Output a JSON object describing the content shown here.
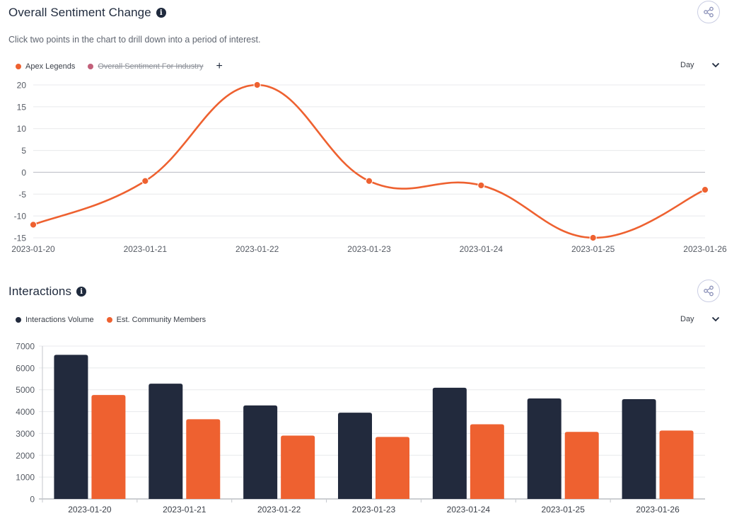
{
  "sentiment": {
    "title": "Overall Sentiment Change",
    "info_icon": "info-icon",
    "share_icon": "share-icon",
    "subtitle": "Click two points in the chart to drill down into a period of interest.",
    "legend": [
      {
        "label": "Apex Legends",
        "color": "#ee6130",
        "hidden": false
      },
      {
        "label": "Overall Sentiment For Industry",
        "color": "#c2607a",
        "hidden": true
      }
    ],
    "add_label": "+",
    "range_label": "Day"
  },
  "interactions": {
    "title": "Interactions",
    "info_icon": "info-icon",
    "share_icon": "share-icon",
    "legend": [
      {
        "label": "Interactions Volume",
        "color": "#222a3d"
      },
      {
        "label": "Est. Community Members",
        "color": "#ee6130"
      }
    ],
    "range_label": "Day"
  },
  "chart_data": [
    {
      "type": "line",
      "title": "Overall Sentiment Change",
      "x": [
        "2023-01-20",
        "2023-01-21",
        "2023-01-22",
        "2023-01-23",
        "2023-01-24",
        "2023-01-25",
        "2023-01-26"
      ],
      "series": [
        {
          "name": "Apex Legends",
          "values": [
            -12,
            -2,
            20,
            -2,
            -3,
            -15,
            -4
          ],
          "color": "#ee6130"
        }
      ],
      "ylim": [
        -15,
        20
      ],
      "yticks": [
        20,
        15,
        10,
        5,
        0,
        -5,
        -10,
        -15
      ],
      "xlabel": "",
      "ylabel": ""
    },
    {
      "type": "bar",
      "title": "Interactions",
      "categories": [
        "2023-01-20",
        "2023-01-21",
        "2023-01-22",
        "2023-01-23",
        "2023-01-24",
        "2023-01-25",
        "2023-01-26"
      ],
      "series": [
        {
          "name": "Interactions Volume",
          "values": [
            6600,
            5280,
            4280,
            3950,
            5090,
            4600,
            4570
          ],
          "color": "#222a3d"
        },
        {
          "name": "Est. Community Members",
          "values": [
            4760,
            3650,
            2900,
            2840,
            3420,
            3070,
            3130
          ],
          "color": "#ee6130"
        }
      ],
      "ylim": [
        0,
        7000
      ],
      "yticks": [
        7000,
        6000,
        5000,
        4000,
        3000,
        2000,
        1000,
        0
      ],
      "xlabel": "",
      "ylabel": ""
    }
  ]
}
